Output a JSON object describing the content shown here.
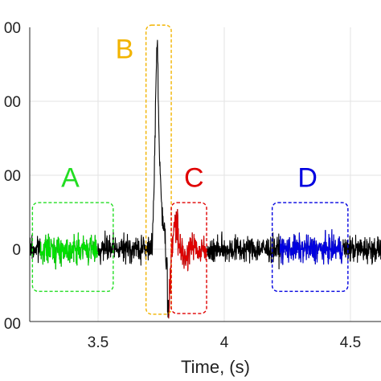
{
  "chart_data": {
    "type": "line",
    "xlabel": "Time, (s)",
    "ylabel": "",
    "xlim": [
      3.23,
      4.62
    ],
    "ylim": [
      -100,
      300
    ],
    "x_ticks": [
      3.5,
      4,
      4.5
    ],
    "x_tick_labels": [
      "3.5",
      "4",
      "4.5"
    ],
    "y_ticks": [
      300,
      200,
      100,
      0,
      -100
    ],
    "y_tick_labels": [
      "00",
      "00",
      "00",
      "0",
      "00"
    ],
    "grid": true,
    "signal": {
      "noise_amplitude": 9,
      "spike": {
        "x": 3.735,
        "peak": 285
      },
      "undershoot": {
        "x": 3.775,
        "min": -88
      }
    },
    "colored_segments": [
      {
        "label": "A",
        "color": "#00e000",
        "x_range": [
          3.27,
          3.5
        ]
      },
      {
        "label": "C",
        "color": "#e00000",
        "x_range": [
          3.78,
          3.93
        ]
      },
      {
        "label": "D",
        "color": "#0000e0",
        "x_range": [
          4.22,
          4.47
        ]
      }
    ],
    "annotations": [
      {
        "label": "A",
        "color": "#22dd22",
        "box_x": [
          3.24,
          3.56
        ],
        "box_y": [
          -57,
          63
        ],
        "label_x": 3.39,
        "label_y": 84
      },
      {
        "label": "B",
        "color": "#f2b400",
        "box_x": [
          3.69,
          3.79
        ],
        "box_y": [
          -88,
          303
        ],
        "label_x": 3.605,
        "label_y": 258
      },
      {
        "label": "C",
        "color": "#e00000",
        "box_x": [
          3.79,
          3.93
        ],
        "box_y": [
          -87,
          63
        ],
        "label_x": 3.88,
        "label_y": 84
      },
      {
        "label": "D",
        "color": "#0000e0",
        "box_x": [
          4.19,
          4.49
        ],
        "box_y": [
          -57,
          63
        ],
        "label_x": 4.33,
        "label_y": 84
      }
    ]
  }
}
